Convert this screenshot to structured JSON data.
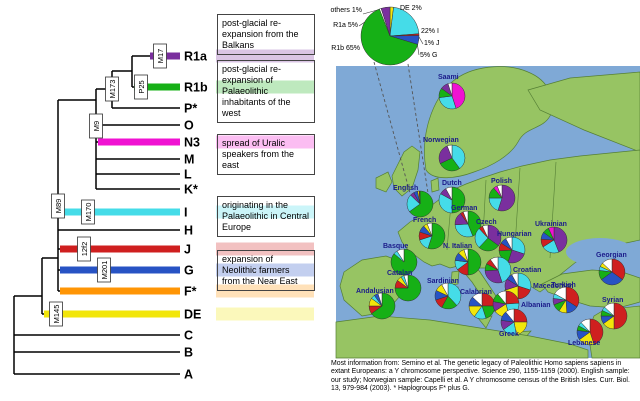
{
  "palette": {
    "R1a": "#7a2f9e",
    "R1b": "#16b016",
    "N3": "#f012d2",
    "I": "#45dce8",
    "J": "#cf1f1f",
    "G": "#2753c4",
    "DE": "#f2e60a",
    "F*": "#ff9505",
    "others": "#ffffff"
  },
  "tree": {
    "tips": [
      "R1a",
      "R1b",
      "P*",
      "O",
      "N3",
      "M",
      "L",
      "K*",
      "I",
      "H",
      "J",
      "G",
      "F*",
      "DE",
      "C",
      "B",
      "A"
    ],
    "markers": [
      "M17",
      "P25",
      "M173",
      "M9",
      "M170",
      "M89",
      "12f2",
      "M201",
      "M145"
    ],
    "colored_tips": [
      "R1a",
      "R1b",
      "N3",
      "I",
      "J",
      "G",
      "F*",
      "DE"
    ],
    "annotations": [
      "post-glacial re-expansion from the Balkans",
      "post-glacial re-expansion of Palaeolithic inhabitants of the west",
      "spread of Uralic speakers from the east",
      "originating in the Palaeolithic in Central Europe",
      "expansion of Neolithic farmers from the Near East"
    ]
  },
  "chart_data": {
    "type": "pie",
    "summary_pie": {
      "slice_labels": [
        "others 1%",
        "R1a 5%",
        "DE 2%",
        "R1b 65%",
        "22% I",
        "1% J",
        "5% G"
      ],
      "slices": [
        [
          "DE",
          2
        ],
        [
          "I",
          22
        ],
        [
          "J",
          1
        ],
        [
          "G",
          5
        ],
        [
          "R1b",
          65
        ],
        [
          "others",
          1
        ],
        [
          "R1a",
          5
        ]
      ]
    },
    "map_pies": [
      {
        "label": "Saami",
        "slices": [
          [
            "N3",
            45
          ],
          [
            "I",
            28
          ],
          [
            "R1b",
            12
          ],
          [
            "R1a",
            10
          ],
          [
            "others",
            5
          ]
        ]
      },
      {
        "label": "Norwegian",
        "slices": [
          [
            "I",
            40
          ],
          [
            "R1b",
            28
          ],
          [
            "R1a",
            26
          ],
          [
            "others",
            6
          ]
        ]
      },
      {
        "label": "English",
        "slices": [
          [
            "R1b",
            65
          ],
          [
            "I",
            22
          ],
          [
            "R1a",
            5
          ],
          [
            "G",
            5
          ],
          [
            "DE",
            2
          ],
          [
            "J",
            1
          ]
        ]
      },
      {
        "label": "Dutch",
        "slices": [
          [
            "R1b",
            50
          ],
          [
            "I",
            33
          ],
          [
            "R1a",
            9
          ],
          [
            "others",
            8
          ]
        ]
      },
      {
        "label": "Polish",
        "slices": [
          [
            "R1a",
            55
          ],
          [
            "I",
            20
          ],
          [
            "R1b",
            14
          ],
          [
            "N3",
            5
          ],
          [
            "others",
            6
          ]
        ]
      },
      {
        "label": "German",
        "slices": [
          [
            "R1b",
            44
          ],
          [
            "I",
            30
          ],
          [
            "R1a",
            16
          ],
          [
            "J",
            4
          ],
          [
            "others",
            6
          ]
        ]
      },
      {
        "label": "French",
        "slices": [
          [
            "R1b",
            55
          ],
          [
            "I",
            15
          ],
          [
            "J",
            10
          ],
          [
            "G",
            9
          ],
          [
            "DE",
            5
          ],
          [
            "others",
            6
          ]
        ]
      },
      {
        "label": "Czech",
        "slices": [
          [
            "R1a",
            35
          ],
          [
            "R1b",
            27
          ],
          [
            "I",
            26
          ],
          [
            "J",
            5
          ],
          [
            "others",
            7
          ]
        ]
      },
      {
        "label": "Hungarian",
        "slices": [
          [
            "I",
            30
          ],
          [
            "R1a",
            25
          ],
          [
            "R1b",
            19
          ],
          [
            "J",
            10
          ],
          [
            "G",
            8
          ],
          [
            "others",
            8
          ]
        ]
      },
      {
        "label": "Ukrainian",
        "slices": [
          [
            "R1a",
            44
          ],
          [
            "I",
            22
          ],
          [
            "J",
            10
          ],
          [
            "G",
            9
          ],
          [
            "R1b",
            8
          ],
          [
            "N3",
            7
          ]
        ]
      },
      {
        "label": "Basque",
        "slices": [
          [
            "R1b",
            86
          ],
          [
            "I",
            5
          ],
          [
            "others",
            9
          ]
        ]
      },
      {
        "label": "N. Italian",
        "slices": [
          [
            "R1b",
            50
          ],
          [
            "J",
            15
          ],
          [
            "I",
            12
          ],
          [
            "G",
            10
          ],
          [
            "DE",
            8
          ],
          [
            "others",
            5
          ]
        ]
      },
      {
        "label": "Croatian",
        "slices": [
          [
            "I",
            45
          ],
          [
            "R1a",
            29
          ],
          [
            "R1b",
            9
          ],
          [
            "J",
            7
          ],
          [
            "others",
            10
          ]
        ]
      },
      {
        "label": "Georgian",
        "slices": [
          [
            "J",
            35
          ],
          [
            "G",
            30
          ],
          [
            "R1b",
            12
          ],
          [
            "I",
            5
          ],
          [
            "DE",
            5
          ],
          [
            "others",
            13
          ]
        ]
      },
      {
        "label": "Catalan",
        "slices": [
          [
            "R1b",
            75
          ],
          [
            "J",
            10
          ],
          [
            "DE",
            6
          ],
          [
            "I",
            4
          ],
          [
            "others",
            5
          ]
        ]
      },
      {
        "label": "Macedonian",
        "slices": [
          [
            "I",
            30
          ],
          [
            "J",
            20
          ],
          [
            "DE",
            20
          ],
          [
            "R1a",
            14
          ],
          [
            "G",
            8
          ],
          [
            "others",
            8
          ]
        ]
      },
      {
        "label": "Andalusian",
        "slices": [
          [
            "R1b",
            65
          ],
          [
            "J",
            10
          ],
          [
            "DE",
            10
          ],
          [
            "I",
            5
          ],
          [
            "G",
            5
          ],
          [
            "others",
            5
          ]
        ]
      },
      {
        "label": "Sardinian",
        "slices": [
          [
            "I",
            38
          ],
          [
            "R1b",
            20
          ],
          [
            "J",
            12
          ],
          [
            "G",
            12
          ],
          [
            "DE",
            10
          ],
          [
            "others",
            8
          ]
        ]
      },
      {
        "label": "Calabrian",
        "slices": [
          [
            "J",
            25
          ],
          [
            "R1b",
            20
          ],
          [
            "I",
            15
          ],
          [
            "DE",
            15
          ],
          [
            "G",
            12
          ],
          [
            "others",
            13
          ]
        ]
      },
      {
        "label": "Albanian",
        "slices": [
          [
            "J",
            24
          ],
          [
            "I",
            22
          ],
          [
            "DE",
            20
          ],
          [
            "R1a",
            12
          ],
          [
            "R1b",
            11
          ],
          [
            "others",
            11
          ]
        ]
      },
      {
        "label": "Greek",
        "slices": [
          [
            "J",
            25
          ],
          [
            "DE",
            22
          ],
          [
            "I",
            18
          ],
          [
            "R1a",
            12
          ],
          [
            "G",
            12
          ],
          [
            "others",
            11
          ]
        ]
      },
      {
        "label": "Turkish",
        "slices": [
          [
            "J",
            34
          ],
          [
            "G",
            15
          ],
          [
            "DE",
            10
          ],
          [
            "R1b",
            10
          ],
          [
            "R1a",
            8
          ],
          [
            "I",
            6
          ],
          [
            "others",
            17
          ]
        ]
      },
      {
        "label": "Syrian",
        "slices": [
          [
            "J",
            50
          ],
          [
            "DE",
            15
          ],
          [
            "G",
            10
          ],
          [
            "R1b",
            7
          ],
          [
            "I",
            5
          ],
          [
            "others",
            13
          ]
        ]
      },
      {
        "label": "Lebanese",
        "slices": [
          [
            "J",
            45
          ],
          [
            "DE",
            20
          ],
          [
            "G",
            12
          ],
          [
            "R1b",
            6
          ],
          [
            "I",
            5
          ],
          [
            "others",
            12
          ]
        ]
      }
    ]
  },
  "caption": "Most information from: Semino et al. The genetic legacy of Paleolithic Homo sapiens sapiens in extant Europeans: a Y chromosome perspective. Science 290, 1155-1159 (2000). English sample: our study; Norwegian sample: Capelli et al. A Y chromosome census of the British Isles. Curr. Biol. 13, 979-984 (2003). * Haplogroups F* plus G."
}
